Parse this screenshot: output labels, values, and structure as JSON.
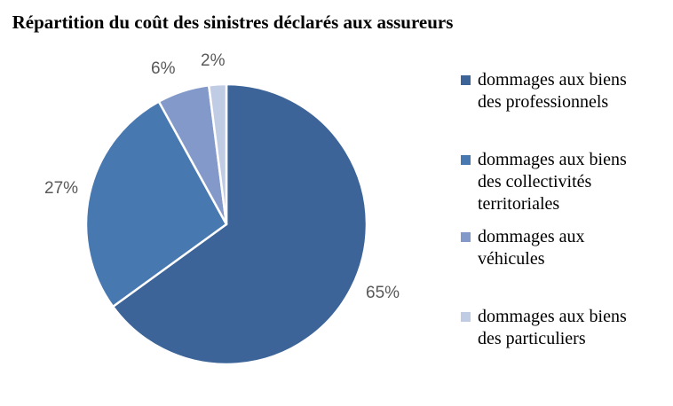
{
  "title": "Répartition du coût des sinistres déclarés aux assureurs",
  "chart_data": {
    "type": "pie",
    "title": "Répartition du coût des sinistres déclarés aux assureurs",
    "categories": [
      "dommages aux biens des professionnels",
      "dommages aux biens des collectivités territoriales",
      "dommages aux véhicules",
      "dommages aux biens des particuliers"
    ],
    "values": [
      65,
      27,
      6,
      2
    ],
    "unit": "%",
    "slice_labels": [
      "65%",
      "27%",
      "6%",
      "2%"
    ],
    "colors": [
      "#3C6498",
      "#4878B0",
      "#8299C9",
      "#C0CBE4"
    ],
    "start_angle_deg": 0,
    "direction": "clockwise",
    "separator_color": "#ffffff",
    "label_color": "#595959",
    "legend_position": "right"
  },
  "legend": {
    "items": [
      {
        "label": "dommages aux biens des professionnels",
        "color": "#3C6498"
      },
      {
        "label": "dommages aux biens des collectivités territoriales",
        "color": "#4878B0"
      },
      {
        "label": "dommages aux véhicules",
        "color": "#8299C9"
      },
      {
        "label": "dommages aux biens des particuliers",
        "color": "#C0CBE4"
      }
    ]
  }
}
